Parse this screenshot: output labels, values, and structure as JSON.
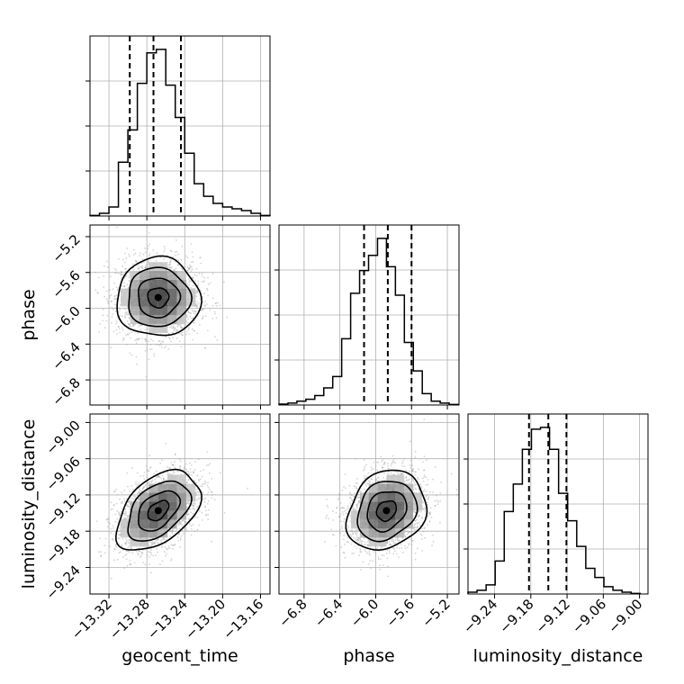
{
  "chart_data": {
    "type": "corner",
    "parameters": [
      "geocent_time",
      "phase",
      "luminosity_distance"
    ],
    "grid": true,
    "axes": {
      "geocent_time": {
        "range": [
          -13.34,
          -13.15
        ],
        "ticks": [
          -13.32,
          -13.28,
          -13.24,
          -13.2,
          -13.16
        ],
        "tick_labels": [
          "−13.32",
          "−13.28",
          "−13.24",
          "−13.20",
          "−13.16"
        ]
      },
      "phase": {
        "range": [
          -7.08,
          -5.07
        ],
        "ticks": [
          -6.8,
          -6.4,
          -6.0,
          -5.6,
          -5.2
        ],
        "tick_labels": [
          "−6.8",
          "−6.4",
          "−6.0",
          "−5.6",
          "−5.2"
        ]
      },
      "luminosity_distance": {
        "range": [
          -9.284,
          -8.986
        ],
        "ticks": [
          -9.24,
          -9.18,
          -9.12,
          -9.06,
          -9.0
        ],
        "tick_labels": [
          "−9.24",
          "−9.18",
          "−9.12",
          "−9.06",
          "−9.00"
        ]
      }
    },
    "histograms": [
      {
        "param": "geocent_time",
        "bin_edges": [
          -13.34,
          -13.33,
          -13.32,
          -13.31,
          -13.3,
          -13.29,
          -13.28,
          -13.27,
          -13.26,
          -13.25,
          -13.24,
          -13.23,
          -13.22,
          -13.21,
          -13.2,
          -13.19,
          -13.18,
          -13.17,
          -13.16,
          -13.15
        ],
        "counts": [
          0.3,
          1.5,
          5,
          30,
          48,
          74,
          91,
          93,
          73,
          55,
          35,
          18,
          11,
          7,
          5,
          4,
          3,
          1.5,
          0.3
        ],
        "quantiles": [
          -13.298,
          -13.273,
          -13.244
        ]
      },
      {
        "param": "phase",
        "bin_edges": [
          -7.08,
          -6.98,
          -6.88,
          -6.78,
          -6.68,
          -6.58,
          -6.48,
          -6.38,
          -6.28,
          -6.18,
          -6.08,
          -5.98,
          -5.88,
          -5.78,
          -5.68,
          -5.58,
          -5.48,
          -5.38,
          -5.28,
          -5.18,
          -5.08
        ],
        "counts": [
          0.5,
          1,
          2,
          3,
          5,
          9,
          15,
          35,
          59,
          71,
          79,
          88,
          73,
          58,
          33,
          18,
          6,
          2,
          1,
          0.3
        ],
        "quantiles": [
          -6.13,
          -5.865,
          -5.6
        ]
      },
      {
        "param": "luminosity_distance",
        "bin_edges": [
          -9.284,
          -9.269,
          -9.254,
          -9.239,
          -9.224,
          -9.209,
          -9.194,
          -9.179,
          -9.164,
          -9.149,
          -9.134,
          -9.119,
          -9.104,
          -9.089,
          -9.074,
          -9.059,
          -9.044,
          -9.029,
          -9.014,
          -8.999
        ],
        "counts": [
          1,
          2,
          5,
          18,
          45,
          60,
          79,
          90,
          91,
          79,
          55,
          40,
          26,
          14,
          9,
          4,
          2,
          1,
          0.3
        ],
        "quantiles": [
          -9.183,
          -9.151,
          -9.121
        ]
      }
    ],
    "pairs": [
      {
        "x": "geocent_time",
        "y": "phase",
        "center": [
          -13.268,
          -5.88
        ],
        "sigma": [
          0.022,
          0.22
        ],
        "correlation": 0.0
      },
      {
        "x": "geocent_time",
        "y": "luminosity_distance",
        "center": [
          -13.268,
          -9.146
        ],
        "sigma": [
          0.022,
          0.033
        ],
        "correlation": 0.45
      },
      {
        "x": "phase",
        "y": "luminosity_distance",
        "center": [
          -5.88,
          -9.146
        ],
        "sigma": [
          0.22,
          0.033
        ],
        "correlation": 0.2
      }
    ],
    "contour_levels_sigma": [
      0.5,
      1.0,
      1.5,
      2.0
    ],
    "colors": {
      "hist": "#000000",
      "contour": "#000000",
      "points": "#aaaaaa",
      "grid": "#b0b0b0"
    }
  }
}
